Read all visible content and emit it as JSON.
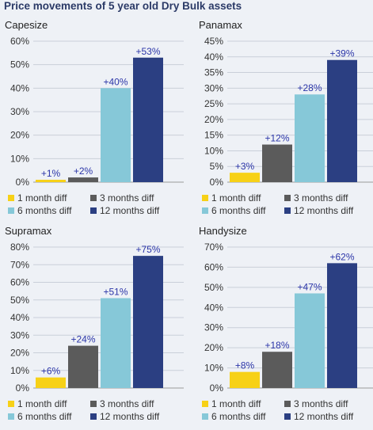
{
  "title": "Price movements of 5 year old Dry Bulk assets",
  "colors": [
    "#f7d117",
    "#5b5b5b",
    "#86c8d8",
    "#2b3f82"
  ],
  "label_color": "#2b35a8",
  "chart_data": [
    {
      "type": "bar",
      "title": "Capesize",
      "categories": [
        "1 month diff",
        "3 months diff",
        "6 months diff",
        "12 months diff"
      ],
      "values": [
        1,
        2,
        40,
        53
      ],
      "labels": [
        "+1%",
        "+2%",
        "+40%",
        "+53%"
      ],
      "ylim": [
        0,
        60
      ],
      "yticks": [
        0,
        10,
        20,
        30,
        40,
        50,
        60
      ],
      "ytick_labels": [
        "0%",
        "10%",
        "20%",
        "30%",
        "40%",
        "50%",
        "60%"
      ],
      "grid": true,
      "legend": "bottom"
    },
    {
      "type": "bar",
      "title": "Panamax",
      "categories": [
        "1 month diff",
        "3 months diff",
        "6 months diff",
        "12 months diff"
      ],
      "values": [
        3,
        12,
        28,
        39
      ],
      "labels": [
        "+3%",
        "+12%",
        "+28%",
        "+39%"
      ],
      "ylim": [
        0,
        45
      ],
      "yticks": [
        0,
        5,
        10,
        15,
        20,
        25,
        30,
        35,
        40,
        45
      ],
      "ytick_labels": [
        "0%",
        "5%",
        "10%",
        "15%",
        "20%",
        "25%",
        "30%",
        "35%",
        "40%",
        "45%"
      ],
      "grid": true,
      "legend": "bottom"
    },
    {
      "type": "bar",
      "title": "Supramax",
      "categories": [
        "1 month diff",
        "3 months diff",
        "6 months diff",
        "12 months diff"
      ],
      "values": [
        6,
        24,
        51,
        75
      ],
      "labels": [
        "+6%",
        "+24%",
        "+51%",
        "+75%"
      ],
      "ylim": [
        0,
        80
      ],
      "yticks": [
        0,
        10,
        20,
        30,
        40,
        50,
        60,
        70,
        80
      ],
      "ytick_labels": [
        "0%",
        "10%",
        "20%",
        "30%",
        "40%",
        "50%",
        "60%",
        "70%",
        "80%"
      ],
      "grid": true,
      "legend": "bottom"
    },
    {
      "type": "bar",
      "title": "Handysize",
      "categories": [
        "1 month diff",
        "3 months diff",
        "6 months diff",
        "12 months diff"
      ],
      "values": [
        8,
        18,
        47,
        62
      ],
      "labels": [
        "+8%",
        "+18%",
        "+47%",
        "+62%"
      ],
      "ylim": [
        0,
        70
      ],
      "yticks": [
        0,
        10,
        20,
        30,
        40,
        50,
        60,
        70
      ],
      "ytick_labels": [
        "0%",
        "10%",
        "20%",
        "30%",
        "40%",
        "50%",
        "60%",
        "70%"
      ],
      "grid": true,
      "legend": "bottom"
    }
  ]
}
